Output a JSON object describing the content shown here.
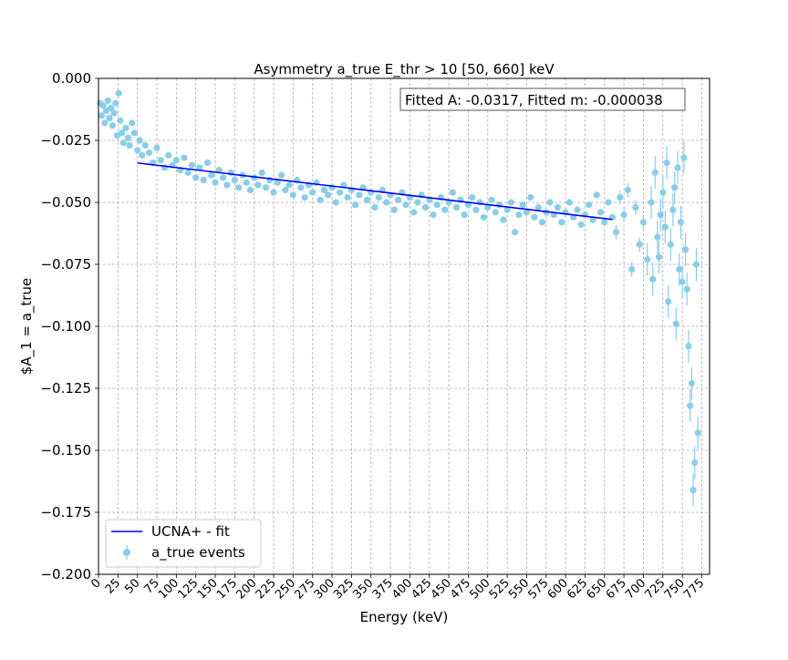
{
  "chart_data": {
    "type": "scatter",
    "title": "Asymmetry a_true E_thr > 10 [50, 660] keV",
    "xlabel": "Energy (keV)",
    "ylabel": "$A_1 = a_true",
    "xlim": [
      0,
      785
    ],
    "ylim": [
      -0.2,
      0.0
    ],
    "x_ticks": [
      0,
      25,
      50,
      75,
      100,
      125,
      150,
      175,
      200,
      225,
      250,
      275,
      300,
      325,
      350,
      375,
      400,
      425,
      450,
      475,
      500,
      525,
      550,
      575,
      600,
      625,
      650,
      675,
      700,
      725,
      750,
      775
    ],
    "y_ticks": [
      0.0,
      -0.025,
      -0.05,
      -0.075,
      -0.1,
      -0.125,
      -0.15,
      -0.175,
      -0.2
    ],
    "y_tick_labels": [
      "0.000",
      "−0.025",
      "−0.050",
      "−0.075",
      "−0.100",
      "−0.125",
      "−0.150",
      "−0.175",
      "−0.200"
    ],
    "grid": true,
    "legend_position": "lower-left",
    "annotation": "Fitted A: -0.0317, Fitted m: -0.000038",
    "fit": {
      "name": "UCNA+ - fit",
      "color": "#0000ff",
      "x": [
        50,
        660
      ],
      "y": [
        -0.0341,
        -0.0569
      ]
    },
    "series": [
      {
        "name": "a_true events",
        "color": "#87ceeb",
        "points": [
          [
            2,
            -0.01
          ],
          [
            4,
            -0.015
          ],
          [
            6,
            -0.011
          ],
          [
            8,
            -0.018
          ],
          [
            10,
            -0.013
          ],
          [
            12,
            -0.009
          ],
          [
            14,
            -0.016
          ],
          [
            16,
            -0.012
          ],
          [
            18,
            -0.019
          ],
          [
            20,
            -0.014
          ],
          [
            22,
            -0.01
          ],
          [
            24,
            -0.023
          ],
          [
            26,
            -0.006
          ],
          [
            28,
            -0.017
          ],
          [
            30,
            -0.022
          ],
          [
            32,
            -0.026
          ],
          [
            35,
            -0.02
          ],
          [
            38,
            -0.024
          ],
          [
            40,
            -0.027
          ],
          [
            43,
            -0.018
          ],
          [
            46,
            -0.022
          ],
          [
            50,
            -0.029
          ],
          [
            53,
            -0.025
          ],
          [
            56,
            -0.031
          ],
          [
            60,
            -0.027
          ],
          [
            65,
            -0.03
          ],
          [
            70,
            -0.034
          ],
          [
            75,
            -0.028
          ],
          [
            80,
            -0.033
          ],
          [
            85,
            -0.036
          ],
          [
            90,
            -0.031
          ],
          [
            95,
            -0.035
          ],
          [
            100,
            -0.033
          ],
          [
            105,
            -0.037
          ],
          [
            110,
            -0.032
          ],
          [
            115,
            -0.038
          ],
          [
            120,
            -0.035
          ],
          [
            125,
            -0.04
          ],
          [
            130,
            -0.036
          ],
          [
            135,
            -0.041
          ],
          [
            140,
            -0.034
          ],
          [
            145,
            -0.039
          ],
          [
            150,
            -0.042
          ],
          [
            155,
            -0.037
          ],
          [
            160,
            -0.04
          ],
          [
            165,
            -0.043
          ],
          [
            170,
            -0.038
          ],
          [
            175,
            -0.041
          ],
          [
            180,
            -0.044
          ],
          [
            185,
            -0.039
          ],
          [
            190,
            -0.042
          ],
          [
            195,
            -0.045
          ],
          [
            200,
            -0.04
          ],
          [
            205,
            -0.043
          ],
          [
            210,
            -0.038
          ],
          [
            215,
            -0.044
          ],
          [
            220,
            -0.041
          ],
          [
            225,
            -0.046
          ],
          [
            230,
            -0.042
          ],
          [
            235,
            -0.039
          ],
          [
            240,
            -0.045
          ],
          [
            245,
            -0.043
          ],
          [
            250,
            -0.047
          ],
          [
            255,
            -0.041
          ],
          [
            260,
            -0.044
          ],
          [
            265,
            -0.048
          ],
          [
            270,
            -0.043
          ],
          [
            275,
            -0.046
          ],
          [
            280,
            -0.042
          ],
          [
            285,
            -0.049
          ],
          [
            290,
            -0.045
          ],
          [
            295,
            -0.047
          ],
          [
            300,
            -0.044
          ],
          [
            305,
            -0.05
          ],
          [
            310,
            -0.046
          ],
          [
            315,
            -0.043
          ],
          [
            320,
            -0.048
          ],
          [
            325,
            -0.045
          ],
          [
            330,
            -0.051
          ],
          [
            335,
            -0.047
          ],
          [
            340,
            -0.044
          ],
          [
            345,
            -0.049
          ],
          [
            350,
            -0.046
          ],
          [
            355,
            -0.052
          ],
          [
            360,
            -0.048
          ],
          [
            365,
            -0.045
          ],
          [
            370,
            -0.05
          ],
          [
            375,
            -0.047
          ],
          [
            380,
            -0.053
          ],
          [
            385,
            -0.049
          ],
          [
            390,
            -0.046
          ],
          [
            395,
            -0.051
          ],
          [
            400,
            -0.048
          ],
          [
            405,
            -0.054
          ],
          [
            410,
            -0.05
          ],
          [
            415,
            -0.047
          ],
          [
            420,
            -0.052
          ],
          [
            425,
            -0.049
          ],
          [
            430,
            -0.055
          ],
          [
            435,
            -0.051
          ],
          [
            440,
            -0.048
          ],
          [
            445,
            -0.053
          ],
          [
            450,
            -0.05
          ],
          [
            455,
            -0.046
          ],
          [
            460,
            -0.052
          ],
          [
            465,
            -0.049
          ],
          [
            470,
            -0.055
          ],
          [
            475,
            -0.051
          ],
          [
            480,
            -0.048
          ],
          [
            485,
            -0.053
          ],
          [
            490,
            -0.05
          ],
          [
            495,
            -0.056
          ],
          [
            500,
            -0.052
          ],
          [
            505,
            -0.049
          ],
          [
            510,
            -0.054
          ],
          [
            515,
            -0.051
          ],
          [
            520,
            -0.057
          ],
          [
            525,
            -0.053
          ],
          [
            530,
            -0.05
          ],
          [
            535,
            -0.062
          ],
          [
            540,
            -0.055
          ],
          [
            545,
            -0.051
          ],
          [
            550,
            -0.054
          ],
          [
            555,
            -0.048
          ],
          [
            560,
            -0.056
          ],
          [
            565,
            -0.052
          ],
          [
            570,
            -0.058
          ],
          [
            575,
            -0.054
          ],
          [
            580,
            -0.05
          ],
          [
            585,
            -0.055
          ],
          [
            590,
            -0.052
          ],
          [
            595,
            -0.058
          ],
          [
            600,
            -0.054
          ],
          [
            605,
            -0.05
          ],
          [
            610,
            -0.056
          ],
          [
            615,
            -0.053
          ],
          [
            620,
            -0.059
          ],
          [
            625,
            -0.055
          ],
          [
            630,
            -0.051
          ],
          [
            635,
            -0.057
          ],
          [
            640,
            -0.047
          ],
          [
            645,
            -0.054
          ],
          [
            650,
            -0.058
          ],
          [
            655,
            -0.05
          ],
          [
            660,
            -0.056
          ],
          [
            665,
            -0.062
          ],
          [
            670,
            -0.048
          ],
          [
            675,
            -0.055
          ],
          [
            680,
            -0.045
          ],
          [
            685,
            -0.077
          ],
          [
            690,
            -0.052
          ],
          [
            695,
            -0.067
          ],
          [
            700,
            -0.058
          ],
          [
            705,
            -0.073
          ],
          [
            710,
            -0.05
          ],
          [
            712,
            -0.081
          ],
          [
            715,
            -0.038
          ],
          [
            718,
            -0.064
          ],
          [
            720,
            -0.072
          ],
          [
            722,
            -0.055
          ],
          [
            725,
            -0.046
          ],
          [
            728,
            -0.06
          ],
          [
            730,
            -0.034
          ],
          [
            732,
            -0.09
          ],
          [
            735,
            -0.067
          ],
          [
            738,
            -0.053
          ],
          [
            740,
            -0.044
          ],
          [
            742,
            -0.099
          ],
          [
            744,
            -0.036
          ],
          [
            746,
            -0.077
          ],
          [
            748,
            -0.058
          ],
          [
            750,
            -0.082
          ],
          [
            752,
            -0.032
          ],
          [
            754,
            -0.069
          ],
          [
            756,
            -0.085
          ],
          [
            758,
            -0.108
          ],
          [
            760,
            -0.132
          ],
          [
            762,
            -0.123
          ],
          [
            764,
            -0.166
          ],
          [
            766,
            -0.155
          ],
          [
            768,
            -0.075
          ],
          [
            770,
            -0.143
          ]
        ]
      }
    ]
  }
}
